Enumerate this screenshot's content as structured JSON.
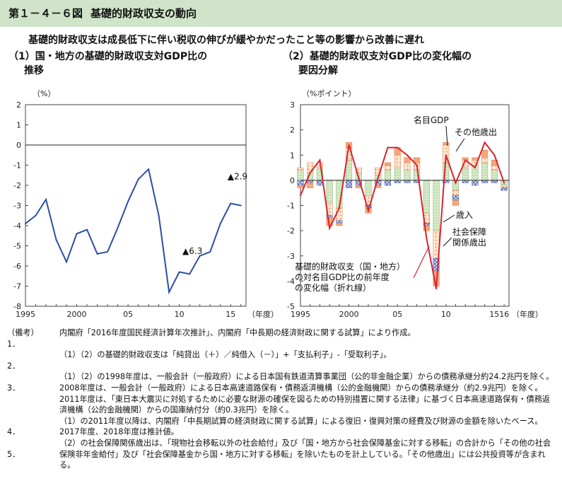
{
  "figure": {
    "number": "第１－４－６図",
    "title": "基礎的財政収支の動向",
    "subtitle": "基礎的財政収支は成長低下に伴い税収の伸びが緩やかだったこと等の影響から改善に遅れ"
  },
  "panel1": {
    "title_line1": "（1）国・地方の基礎的財政収支対GDP比の",
    "title_line2": "推移",
    "y_unit": "（%）",
    "x_unit": "（年度）",
    "annotations": [
      {
        "text": "▲6.3",
        "x": 2010.3,
        "y": -5.4
      },
      {
        "text": "▲2.9",
        "x": 2014.7,
        "y": -1.7
      }
    ]
  },
  "panel2": {
    "title_line1": "（2）基礎的財政収支対GDP比の変化幅の",
    "title_line2": "要因分解",
    "y_unit": "（%ポイント）",
    "x_unit": "（年度）",
    "callouts": {
      "nominal_gdp": "名目GDP",
      "other_exp": "その他歳出",
      "revenue": "歳入",
      "social": "社会保障",
      "social2": "関係歳出",
      "line_label1": "基礎的財政収支（国・地方）",
      "line_label2": "の対名目GDP比の前年度",
      "line_label3": "の変化幅（折れ線）"
    }
  },
  "chart_data": [
    {
      "type": "line",
      "x": [
        1995,
        1996,
        1997,
        1998,
        1999,
        2000,
        2001,
        2002,
        2003,
        2004,
        2005,
        2006,
        2007,
        2008,
        2009,
        2010,
        2011,
        2012,
        2013,
        2014,
        2015,
        2016
      ],
      "series": [
        {
          "values": [
            -3.9,
            -3.5,
            -2.7,
            -4.7,
            -5.8,
            -4.4,
            -4.2,
            -5.4,
            -5.3,
            -4.1,
            -2.8,
            -1.7,
            -1.2,
            -3.5,
            -7.3,
            -6.3,
            -6.4,
            -5.5,
            -5.3,
            -3.9,
            -2.9,
            -3.0
          ]
        }
      ],
      "xlim": [
        1995,
        2016.5
      ],
      "ylim": [
        -8,
        2
      ],
      "x_ticks": [
        "1995",
        "2000",
        "05",
        "10",
        "15"
      ],
      "y_ticks": [
        "2",
        "1",
        "0",
        "-1",
        "-2",
        "-3",
        "-4",
        "-5",
        "-6",
        "-7",
        "-8"
      ],
      "colors": {
        "line": "#2b4ea6"
      }
    },
    {
      "type": "bar",
      "x": [
        1995,
        1996,
        1997,
        1998,
        1999,
        2000,
        2001,
        2002,
        2003,
        2004,
        2005,
        2006,
        2007,
        2008,
        2009,
        2010,
        2011,
        2012,
        2013,
        2014,
        2015,
        2016
      ],
      "series": [
        {
          "values": [
            0.4,
            0.3,
            0.5,
            -0.9,
            -1.1,
            0.8,
            0.3,
            -0.6,
            0.2,
            0.4,
            0.5,
            0.4,
            0.4,
            -1.3,
            -2.0,
            0.7,
            -0.4,
            0.5,
            0.6,
            0.7,
            0.4,
            -0.2
          ],
          "color": "#cfe6c2"
        },
        {
          "values": [
            0.1,
            0.4,
            0.2,
            -0.5,
            -0.5,
            0.5,
            0.2,
            -0.4,
            0.3,
            0.2,
            0.5,
            0.3,
            0.3,
            -0.4,
            -1.1,
            0.7,
            -0.2,
            0.3,
            0.2,
            0.2,
            0.2,
            -0.1
          ],
          "color": "#f6c39c"
        },
        {
          "values": [
            -0.2,
            -0.1,
            -0.2,
            -0.1,
            -0.1,
            -0.3,
            -0.2,
            -0.1,
            -0.2,
            -0.2,
            -0.1,
            -0.1,
            -0.1,
            -0.1,
            -0.5,
            -0.1,
            -0.2,
            -0.1,
            -0.2,
            -0.1,
            -0.1,
            -0.1
          ],
          "color": "#b7bfe8"
        },
        {
          "values": [
            -0.1,
            -0.2,
            0.0,
            -0.3,
            -0.1,
            0.2,
            -0.1,
            -0.2,
            -0.1,
            0.1,
            0.3,
            0.2,
            0.2,
            -0.2,
            -0.6,
            0.1,
            -0.2,
            0.1,
            0.1,
            0.3,
            0.2,
            0.0
          ],
          "color": "#f08a5a"
        }
      ],
      "line": {
        "values": [
          -0.6,
          0.3,
          0.8,
          -1.9,
          -1.1,
          1.4,
          0.1,
          -1.2,
          0.1,
          1.3,
          1.3,
          1.0,
          0.6,
          -2.3,
          -4.3,
          1.0,
          -0.1,
          0.8,
          0.5,
          1.5,
          1.0,
          -0.1
        ],
        "color": "#d9232e"
      },
      "xlim": [
        1995,
        2016.5
      ],
      "ylim": [
        -5,
        3
      ],
      "x_ticks": [
        "1995",
        "2000",
        "05",
        "10",
        "1516"
      ],
      "y_ticks": [
        "3",
        "2",
        "1",
        "0",
        "-1",
        "-2",
        "-3",
        "-4",
        "-5"
      ]
    }
  ],
  "notes": {
    "head": "（備考）",
    "items": [
      {
        "num": "1．",
        "text": "内閣府「2016年度国民経済計算年次推計」、内閣府「中長期の経済財政に関する試算」により作成。"
      },
      {
        "num": "2．",
        "text": "（1）（2）の基礎的財政収支は「純貸出（＋）／純借入（－）」+「支払利子」-「受取利子」。"
      },
      {
        "num": "3．",
        "text": "（1）（2）の1998年度は、一般会計（一般政府）による日本国有鉄道清算事業団（公的非金融企業）からの債務承継分約24.2兆円を除く。2008年度は、一般会計（一般政府）による日本高速道路保有・債務返済機構（公的金融機関）からの債務承継分（約2.9兆円）を除く。2011年度は、「東日本大震災に対処するために必要な財源の確保を図るための特別措置に関する法律」に基づく日本高速道路保有・債務返済機構（公的金融機関）からの国庫納付分（約0.3兆円）を除く。"
      },
      {
        "num": "4．",
        "text": "（1）の2011年度以降は、内閣府「中長期試算の経済財政に関する試算」による復旧・復興対策の経費及び財源の金額を除いたベース。2017年度、2018年度は推計値。"
      },
      {
        "num": "5．",
        "text": "（2）の社会保障関係歳出は、「現物社会移転以外の社会給付」及び「国・地方から社会保障基金に対する移転」の合計から「その他の社会保険非年金給付」及び「社会保障基金から国・地方に対する移転」を除いたものを計上している。「その他歳出」には公共投資等が含まれる。"
      }
    ]
  }
}
